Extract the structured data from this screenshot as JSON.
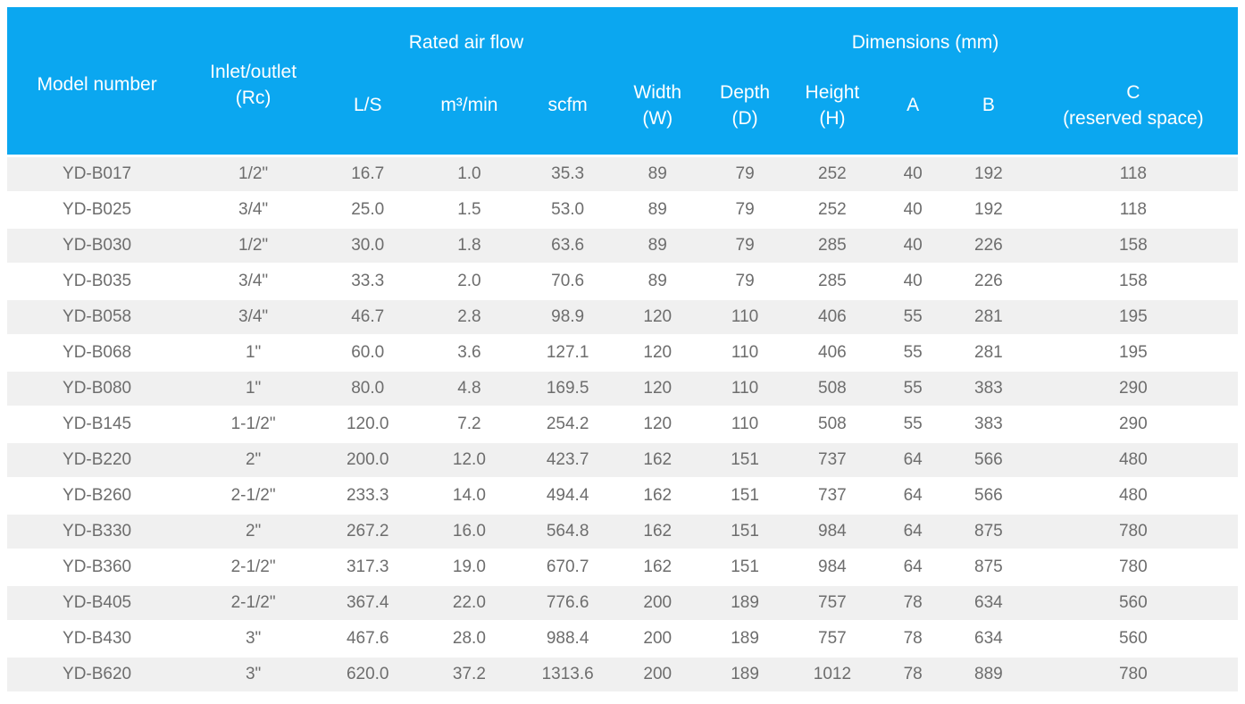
{
  "colors": {
    "header_background": "#0ba7f0",
    "header_text": "#ffffff",
    "row_alternate_background": "#f0f0f0",
    "row_background": "#ffffff",
    "body_text": "#6d6d6d"
  },
  "table": {
    "header": {
      "model_number": "Model number",
      "inlet_outlet": "Inlet/outlet\n(Rc)",
      "rated_air_flow": "Rated air flow",
      "dimensions": "Dimensions (mm)",
      "ls": "L/S",
      "m3_min": "m³/min",
      "scfm": "scfm",
      "width": "Width\n(W)",
      "depth": "Depth\n(D)",
      "height": "Height\n(H)",
      "a": "A",
      "b": "B",
      "c": "C\n(reserved space)"
    },
    "rows": [
      [
        "YD-B017",
        "1/2\"",
        "16.7",
        "1.0",
        "35.3",
        "89",
        "79",
        "252",
        "40",
        "192",
        "118"
      ],
      [
        "YD-B025",
        "3/4\"",
        "25.0",
        "1.5",
        "53.0",
        "89",
        "79",
        "252",
        "40",
        "192",
        "118"
      ],
      [
        "YD-B030",
        "1/2\"",
        "30.0",
        "1.8",
        "63.6",
        "89",
        "79",
        "285",
        "40",
        "226",
        "158"
      ],
      [
        "YD-B035",
        "3/4\"",
        "33.3",
        "2.0",
        "70.6",
        "89",
        "79",
        "285",
        "40",
        "226",
        "158"
      ],
      [
        "YD-B058",
        "3/4\"",
        "46.7",
        "2.8",
        "98.9",
        "120",
        "110",
        "406",
        "55",
        "281",
        "195"
      ],
      [
        "YD-B068",
        "1\"",
        "60.0",
        "3.6",
        "127.1",
        "120",
        "110",
        "406",
        "55",
        "281",
        "195"
      ],
      [
        "YD-B080",
        "1\"",
        "80.0",
        "4.8",
        "169.5",
        "120",
        "110",
        "508",
        "55",
        "383",
        "290"
      ],
      [
        "YD-B145",
        "1-1/2\"",
        "120.0",
        "7.2",
        "254.2",
        "120",
        "110",
        "508",
        "55",
        "383",
        "290"
      ],
      [
        "YD-B220",
        "2\"",
        "200.0",
        "12.0",
        "423.7",
        "162",
        "151",
        "737",
        "64",
        "566",
        "480"
      ],
      [
        "YD-B260",
        "2-1/2\"",
        "233.3",
        "14.0",
        "494.4",
        "162",
        "151",
        "737",
        "64",
        "566",
        "480"
      ],
      [
        "YD-B330",
        "2\"",
        "267.2",
        "16.0",
        "564.8",
        "162",
        "151",
        "984",
        "64",
        "875",
        "780"
      ],
      [
        "YD-B360",
        "2-1/2\"",
        "317.3",
        "19.0",
        "670.7",
        "162",
        "151",
        "984",
        "64",
        "875",
        "780"
      ],
      [
        "YD-B405",
        "2-1/2\"",
        "367.4",
        "22.0",
        "776.6",
        "200",
        "189",
        "757",
        "78",
        "634",
        "560"
      ],
      [
        "YD-B430",
        "3\"",
        "467.6",
        "28.0",
        "988.4",
        "200",
        "189",
        "757",
        "78",
        "634",
        "560"
      ],
      [
        "YD-B620",
        "3\"",
        "620.0",
        "37.2",
        "1313.6",
        "200",
        "189",
        "1012",
        "78",
        "889",
        "780"
      ]
    ]
  }
}
